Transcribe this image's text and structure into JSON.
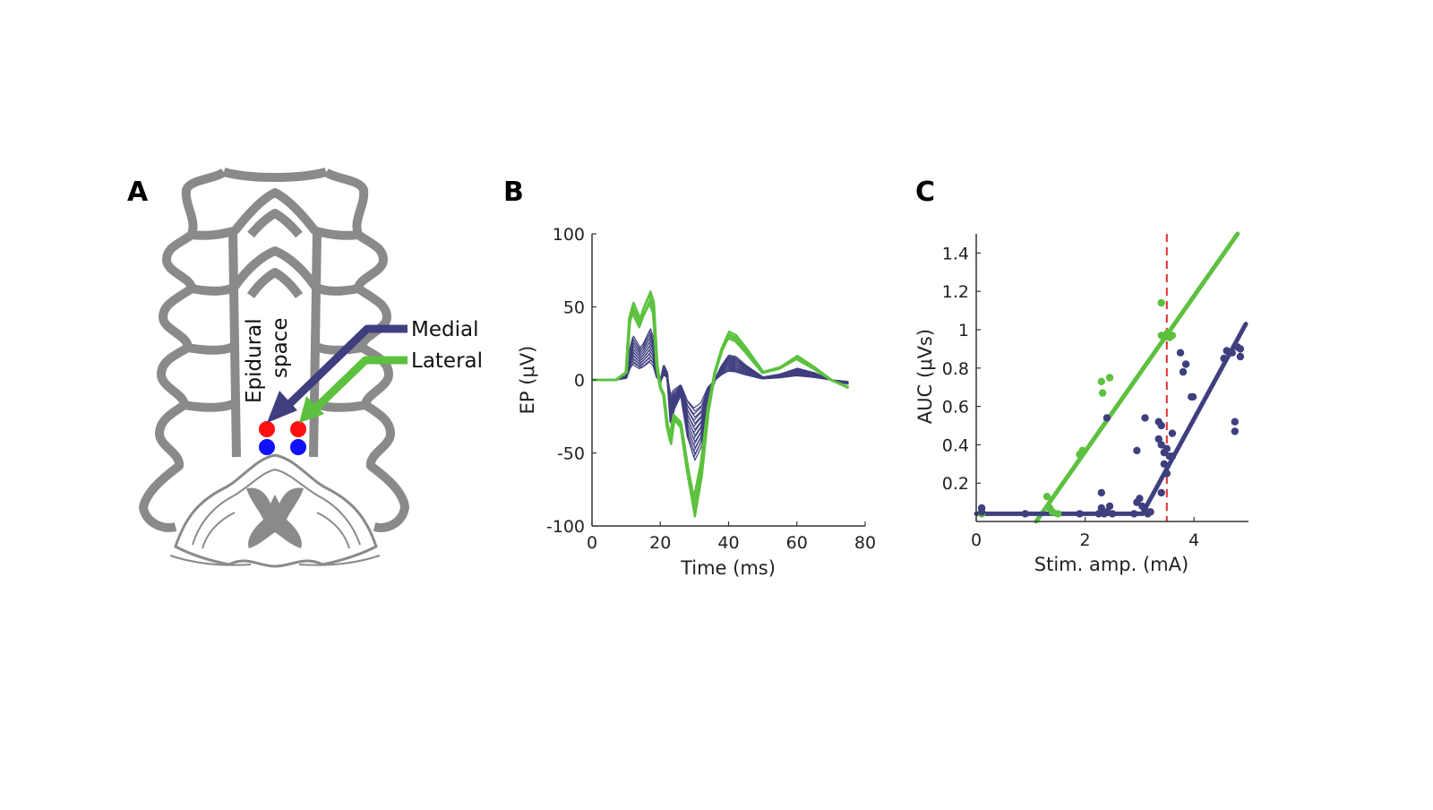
{
  "panels": {
    "a": {
      "letter": "A",
      "epidural_label": "Epidural",
      "space_label": "space",
      "medial_label": "Medial",
      "lateral_label": "Lateral"
    },
    "b": {
      "letter": "B"
    },
    "c": {
      "letter": "C"
    }
  },
  "colors": {
    "medial": "#3f3f7f",
    "lateral": "#5cc13e",
    "anatomy": "#8a8a8a",
    "electrode_red": "#ff1010",
    "electrode_blue": "#1010ff",
    "threshold": "#e03030"
  },
  "chart_data": [
    {
      "type": "line",
      "title": "",
      "xlabel": "Time (ms)",
      "ylabel": "EP (μV)",
      "xlim": [
        0,
        80
      ],
      "ylim": [
        -100,
        100
      ],
      "xticks": [
        0,
        20,
        40,
        60,
        80
      ],
      "yticks": [
        -100,
        -50,
        0,
        50,
        100
      ],
      "series": [
        {
          "name": "Lateral",
          "color": "#5cc13e",
          "count": 4,
          "time_ms": [
            7,
            10,
            11,
            12,
            14,
            15,
            16,
            17,
            18,
            19,
            20,
            21,
            22,
            23,
            24,
            26,
            28,
            30,
            32,
            34,
            36,
            38,
            40,
            42,
            45,
            50,
            55,
            60,
            65,
            70,
            75
          ],
          "values": [
            0,
            5,
            40,
            48,
            38,
            45,
            50,
            55,
            48,
            10,
            -5,
            -10,
            -30,
            -40,
            -25,
            -30,
            -60,
            -85,
            -60,
            -20,
            5,
            20,
            30,
            28,
            20,
            5,
            8,
            15,
            8,
            0,
            -5
          ]
        },
        {
          "name": "Medial",
          "color": "#3f3f7f",
          "count": 18,
          "time_ms": [
            7,
            10,
            11,
            12,
            14,
            15,
            16,
            17,
            18,
            19,
            20,
            21,
            22,
            23,
            24,
            26,
            28,
            30,
            32,
            34,
            36,
            38,
            40,
            42,
            45,
            50,
            55,
            60,
            65,
            70,
            75
          ],
          "values": [
            0,
            3,
            20,
            30,
            22,
            25,
            30,
            35,
            28,
            5,
            -2,
            10,
            5,
            -30,
            -20,
            -10,
            -40,
            -55,
            -45,
            -15,
            0,
            10,
            17,
            16,
            10,
            2,
            4,
            8,
            5,
            0,
            -3
          ]
        }
      ]
    },
    {
      "type": "scatter",
      "title": "",
      "xlabel": "Stim. amp. (mA)",
      "ylabel": "AUC (μVs)",
      "xlim": [
        0,
        5
      ],
      "ylim": [
        0,
        1.5
      ],
      "xticks": [
        0,
        2,
        4
      ],
      "yticks": [
        0.2,
        0.4,
        0.6,
        0.8,
        1,
        1.2,
        1.4
      ],
      "threshold_x": 3.5,
      "series": [
        {
          "name": "Lateral",
          "color": "#5cc13e",
          "points": [
            [
              0.1,
              0.04
            ],
            [
              1.3,
              0.13
            ],
            [
              1.4,
              0.05
            ],
            [
              1.35,
              0.07
            ],
            [
              1.5,
              0.04
            ],
            [
              1.9,
              0.35
            ],
            [
              1.95,
              0.37
            ],
            [
              2.3,
              0.73
            ],
            [
              2.32,
              0.67
            ],
            [
              2.45,
              0.75
            ],
            [
              3.4,
              1.14
            ],
            [
              3.4,
              0.97
            ],
            [
              3.45,
              0.96
            ],
            [
              3.5,
              0.98
            ],
            [
              3.55,
              0.96
            ],
            [
              3.6,
              0.97
            ]
          ],
          "fit_line": [
            [
              1.1,
              0
            ],
            [
              4.8,
              1.5
            ]
          ]
        },
        {
          "name": "Medial",
          "color": "#3f3f7f",
          "points": [
            [
              0.1,
              0.07
            ],
            [
              0.1,
              0.05
            ],
            [
              0.9,
              0.04
            ],
            [
              1.9,
              0.04
            ],
            [
              2.25,
              0.04
            ],
            [
              2.3,
              0.07
            ],
            [
              2.3,
              0.15
            ],
            [
              2.35,
              0.04
            ],
            [
              2.4,
              0.05
            ],
            [
              2.45,
              0.08
            ],
            [
              2.5,
              0.04
            ],
            [
              2.4,
              0.54
            ],
            [
              2.9,
              0.04
            ],
            [
              2.95,
              0.1
            ],
            [
              3,
              0.12
            ],
            [
              3.05,
              0.08
            ],
            [
              3.1,
              0.06
            ],
            [
              3.15,
              0.04
            ],
            [
              3.2,
              0.05
            ],
            [
              2.95,
              0.37
            ],
            [
              3.1,
              0.54
            ],
            [
              3.35,
              0.52
            ],
            [
              3.4,
              0.5
            ],
            [
              3.35,
              0.43
            ],
            [
              3.4,
              0.4
            ],
            [
              3.45,
              0.36
            ],
            [
              3.5,
              0.38
            ],
            [
              3.55,
              0.34
            ],
            [
              3.6,
              0.34
            ],
            [
              3.4,
              0.15
            ],
            [
              3.45,
              0.3
            ],
            [
              3.5,
              0.25
            ],
            [
              3.6,
              0.46
            ],
            [
              3.75,
              0.88
            ],
            [
              3.8,
              0.78
            ],
            [
              3.85,
              0.82
            ],
            [
              3.95,
              0.65
            ],
            [
              3.98,
              0.65
            ],
            [
              4.55,
              0.85
            ],
            [
              4.6,
              0.89
            ],
            [
              4.65,
              0.88
            ],
            [
              4.7,
              0.88
            ],
            [
              4.75,
              0.52
            ],
            [
              4.75,
              0.47
            ],
            [
              4.8,
              0.91
            ],
            [
              4.85,
              0.86
            ],
            [
              4.85,
              0.9
            ]
          ],
          "fit_line": [
            [
              0,
              0.04
            ],
            [
              3.05,
              0.04
            ],
            [
              4.95,
              1.03
            ]
          ]
        }
      ]
    }
  ]
}
